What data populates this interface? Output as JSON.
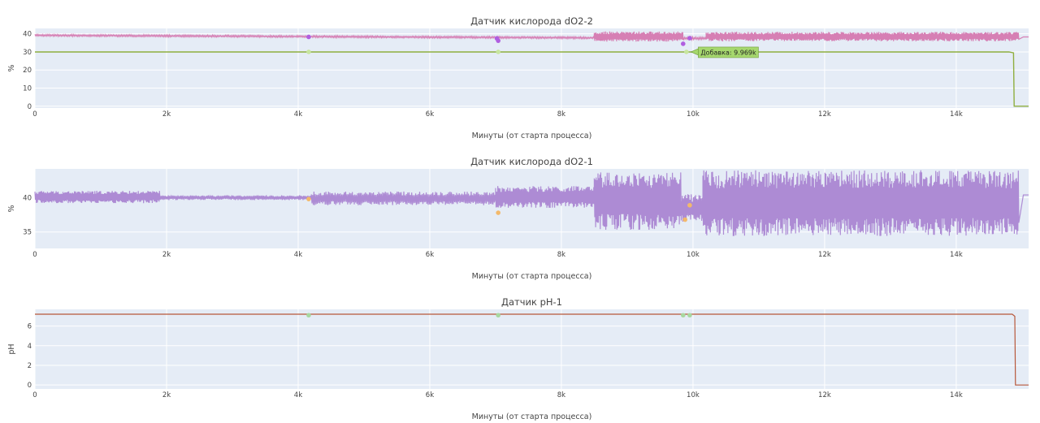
{
  "chart_data": [
    {
      "type": "line",
      "title": "Датчик кислорода dO2-2",
      "xlabel": "Минуты (от старта процесса)",
      "ylabel": "%",
      "xlim": [
        0,
        15100
      ],
      "ylim": [
        -1,
        43
      ],
      "x_ticks": [
        0,
        2000,
        4000,
        6000,
        8000,
        10000,
        12000,
        14000
      ],
      "x_tick_labels": [
        "0",
        "2k",
        "4k",
        "6k",
        "8k",
        "10k",
        "12k",
        "14k"
      ],
      "y_ticks": [
        0,
        10,
        20,
        30,
        40
      ],
      "y_tick_labels": [
        "0",
        "10",
        "20",
        "30",
        "40"
      ],
      "grid": true,
      "colors": {
        "signal": "#d67fb4",
        "event_markers": "#b05ee0",
        "setpoint": "#8fae3f",
        "setpoint_markers": "#c8e6a0"
      },
      "series": [
        {
          "role": "signal",
          "segments": [
            {
              "x_start": 0,
              "x_end": 8500,
              "base_start": 39.2,
              "base_end": 37.8,
              "amp": 0.6,
              "n": 700
            },
            {
              "x_start": 8500,
              "x_end": 9850,
              "base_start": 38.5,
              "base_end": 38.5,
              "amp": 2.8,
              "n": 220
            },
            {
              "x_start": 9850,
              "x_end": 10200,
              "base_start": 37.5,
              "base_end": 37.5,
              "amp": 0.8,
              "n": 30
            },
            {
              "x_start": 10200,
              "x_end": 14950,
              "base_start": 38.5,
              "base_end": 38.5,
              "amp": 2.6,
              "n": 700
            }
          ],
          "end_value": 38.3
        },
        {
          "role": "setpoint",
          "points": [
            [
              0,
              30
            ],
            [
              14800,
              30
            ],
            [
              14870,
              29.5
            ],
            [
              14880,
              0
            ],
            [
              15100,
              0
            ]
          ]
        }
      ],
      "event_markers": [
        [
          4160,
          38.3
        ],
        [
          7020,
          37.5
        ],
        [
          7040,
          36.2
        ],
        [
          9850,
          34.5
        ],
        [
          9950,
          37.6
        ]
      ],
      "setpoint_markers": [
        [
          4160,
          30
        ],
        [
          7040,
          30
        ],
        [
          9900,
          30
        ]
      ],
      "annotation": {
        "text": "Добавка: 9.969k",
        "x": 9969,
        "y": 30
      }
    },
    {
      "type": "line",
      "title": "Датчик кислорода dO2-1",
      "xlabel": "Минуты (от старта процесса)",
      "ylabel": "%",
      "xlim": [
        0,
        15100
      ],
      "ylim": [
        32.6,
        44.2
      ],
      "x_ticks": [
        0,
        2000,
        4000,
        6000,
        8000,
        10000,
        12000,
        14000
      ],
      "x_tick_labels": [
        "0",
        "2k",
        "4k",
        "6k",
        "8k",
        "10k",
        "12k",
        "14k"
      ],
      "y_ticks": [
        35,
        40
      ],
      "y_tick_labels": [
        "35",
        "40"
      ],
      "grid": true,
      "colors": {
        "signal": "#ad8bd4",
        "event_markers": "#f3b96b"
      },
      "series": [
        {
          "role": "signal",
          "segments": [
            {
              "x_start": 0,
              "x_end": 1900,
              "base_start": 40.1,
              "base_end": 40.1,
              "amp": 0.9,
              "n": 260
            },
            {
              "x_start": 1900,
              "x_end": 4200,
              "base_start": 40.0,
              "base_end": 40.0,
              "amp": 0.35,
              "n": 220
            },
            {
              "x_start": 4200,
              "x_end": 7000,
              "base_start": 39.9,
              "base_end": 39.9,
              "amp": 1.0,
              "n": 280
            },
            {
              "x_start": 7000,
              "x_end": 8500,
              "base_start": 40.1,
              "base_end": 40.1,
              "amp": 1.6,
              "n": 180
            },
            {
              "x_start": 8500,
              "x_end": 9820,
              "base_start": 39.5,
              "base_end": 39.5,
              "amp": 4.2,
              "n": 190
            },
            {
              "x_start": 9820,
              "x_end": 10150,
              "base_start": 38.5,
              "base_end": 38.5,
              "amp": 2.0,
              "n": 40
            },
            {
              "x_start": 10150,
              "x_end": 14950,
              "base_start": 39.2,
              "base_end": 39.2,
              "amp": 4.8,
              "n": 720
            }
          ],
          "end_value": 40.4
        }
      ],
      "event_markers": [
        [
          4160,
          39.8
        ],
        [
          7040,
          37.8
        ],
        [
          9880,
          36.8
        ],
        [
          9950,
          38.9
        ]
      ]
    },
    {
      "type": "line",
      "title": "Датчик pH-1",
      "xlabel": "Минуты (от старта процесса)",
      "ylabel": "pH",
      "xlim": [
        0,
        15100
      ],
      "ylim": [
        -0.4,
        7.7
      ],
      "x_ticks": [
        0,
        2000,
        4000,
        6000,
        8000,
        10000,
        12000,
        14000
      ],
      "x_tick_labels": [
        "0",
        "2k",
        "4k",
        "6k",
        "8k",
        "10k",
        "12k",
        "14k"
      ],
      "y_ticks": [
        0,
        2,
        4,
        6
      ],
      "y_tick_labels": [
        "0",
        "2",
        "4",
        "6"
      ],
      "grid": true,
      "colors": {
        "signal": "#b7573a",
        "event_markers": "#a8d8a0"
      },
      "series": [
        {
          "role": "signal",
          "points": [
            [
              0,
              7.2
            ],
            [
              14850,
              7.2
            ],
            [
              14890,
              7.0
            ],
            [
              14900,
              0
            ],
            [
              15100,
              0
            ]
          ]
        }
      ],
      "event_markers": [
        [
          4160,
          7.1
        ],
        [
          7040,
          7.1
        ],
        [
          9850,
          7.1
        ],
        [
          9950,
          7.1
        ]
      ]
    }
  ]
}
